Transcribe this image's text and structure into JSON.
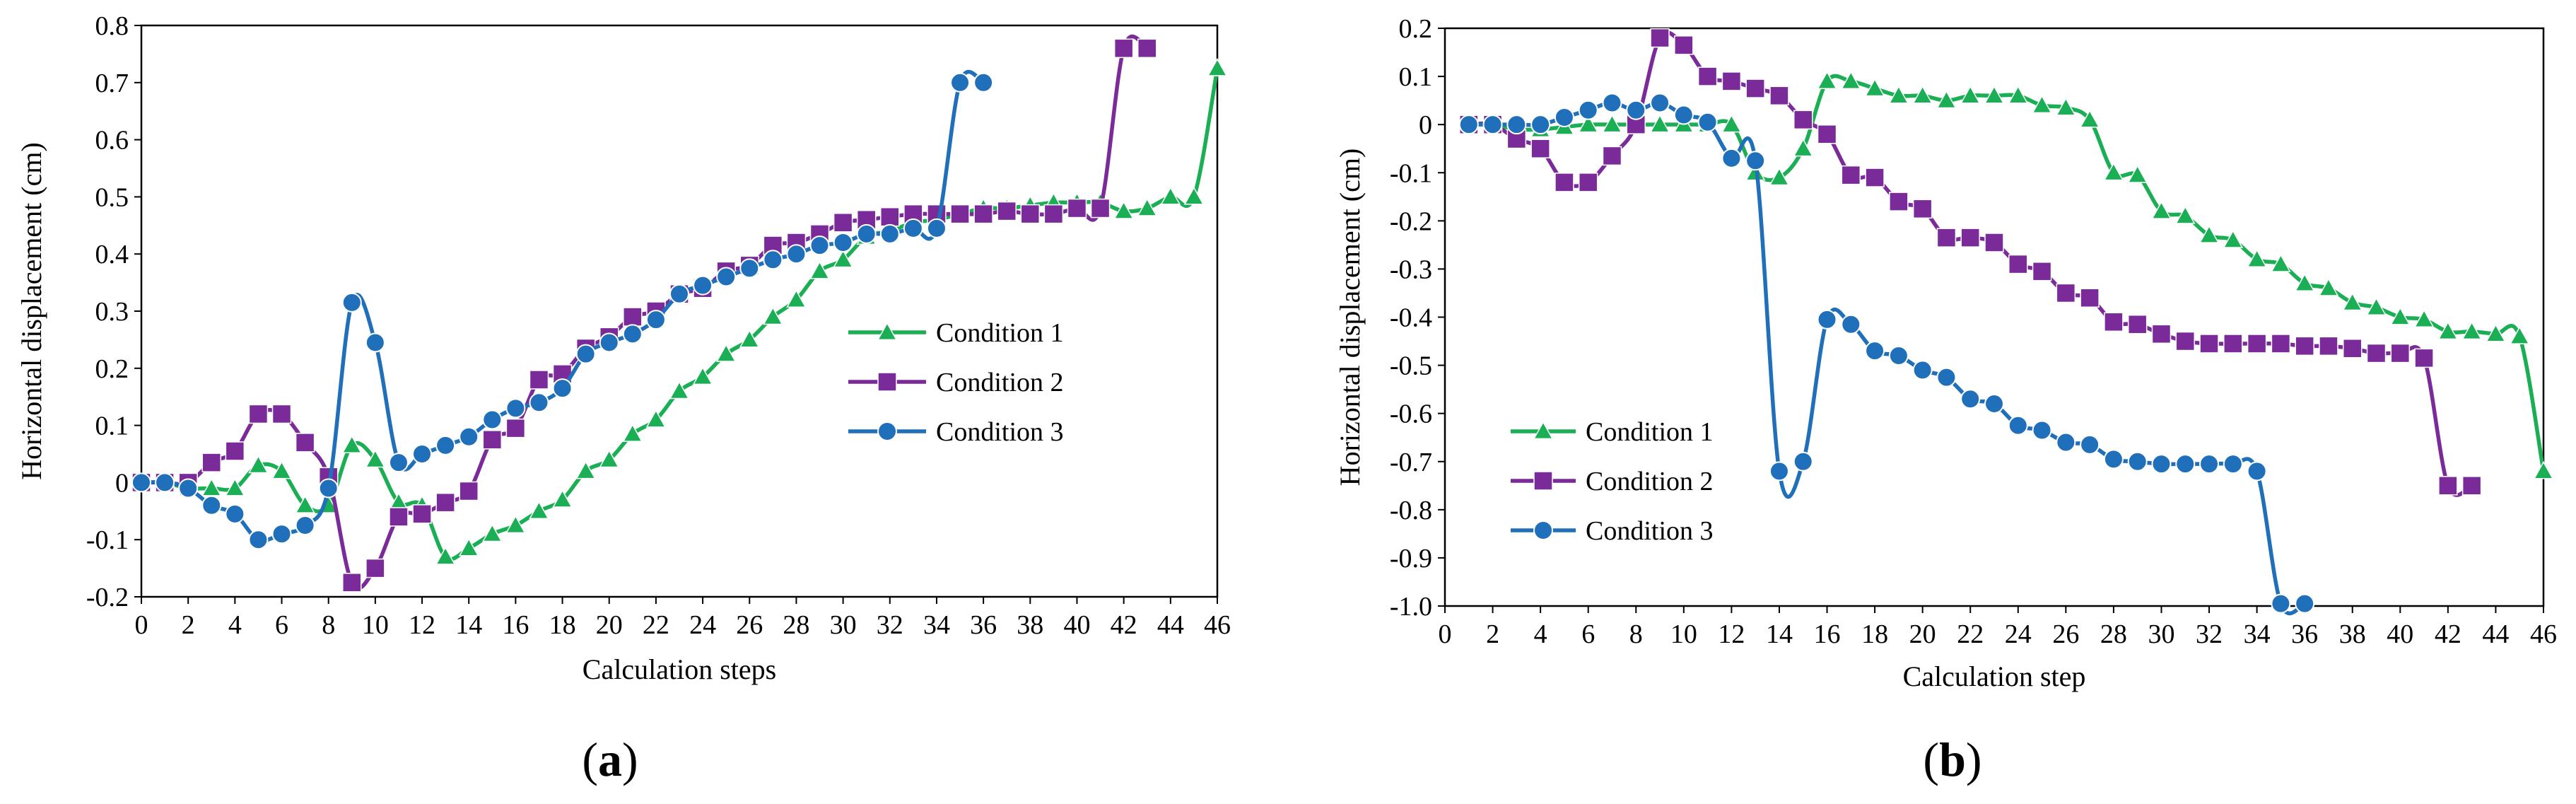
{
  "chart_data": [
    {
      "type": "line",
      "panel_label_open": "(",
      "panel_label_letter": "a",
      "panel_label_close": ")",
      "xlabel": "Calculation steps",
      "ylabel": "Horizontal displacement (cm)",
      "xlim": [
        0,
        46
      ],
      "ylim": [
        -0.2,
        0.8
      ],
      "xticks": [
        0,
        2,
        4,
        6,
        8,
        10,
        12,
        14,
        16,
        18,
        20,
        22,
        24,
        26,
        28,
        30,
        32,
        34,
        36,
        38,
        40,
        42,
        44,
        46
      ],
      "xtick_labels": [
        "0",
        "2",
        "4",
        "6",
        "8",
        "10",
        "12",
        "14",
        "16",
        "18",
        "20",
        "22",
        "24",
        "26",
        "28",
        "30",
        "32",
        "34",
        "36",
        "38",
        "40",
        "42",
        "44",
        "46"
      ],
      "yticks": [
        -0.2,
        -0.1,
        0,
        0.1,
        0.2,
        0.3,
        0.4,
        0.5,
        0.6,
        0.7,
        0.8
      ],
      "ytick_labels": [
        "-0.2",
        "-0.1",
        "0",
        "0.1",
        "0.2",
        "0.3",
        "0.4",
        "0.5",
        "0.6",
        "0.7",
        "0.8"
      ],
      "grid": false,
      "legend_position": "right-middle",
      "series": [
        {
          "name": "Condition 1",
          "color": "#1aaf54",
          "marker": "triangle",
          "x": [
            0,
            1,
            2,
            3,
            4,
            5,
            6,
            7,
            8,
            9,
            10,
            11,
            12,
            13,
            14,
            15,
            16,
            17,
            18,
            19,
            20,
            21,
            22,
            23,
            24,
            25,
            26,
            27,
            28,
            29,
            30,
            31,
            32,
            33,
            34,
            35,
            36,
            37,
            38,
            39,
            40,
            41,
            42,
            43,
            44,
            45,
            46
          ],
          "y": [
            0,
            0,
            -0.01,
            -0.01,
            -0.01,
            0.03,
            0.02,
            -0.04,
            -0.04,
            0.065,
            0.04,
            -0.035,
            -0.04,
            -0.13,
            -0.115,
            -0.09,
            -0.075,
            -0.05,
            -0.03,
            0.02,
            0.04,
            0.085,
            0.11,
            0.16,
            0.185,
            0.225,
            0.25,
            0.29,
            0.32,
            0.37,
            0.39,
            0.43,
            0.44,
            0.455,
            0.46,
            0.47,
            0.48,
            0.48,
            0.485,
            0.49,
            0.49,
            0.49,
            0.475,
            0.48,
            0.5,
            0.5,
            0.725
          ]
        },
        {
          "name": "Condition 2",
          "color": "#7b2a99",
          "marker": "square",
          "x": [
            0,
            1,
            2,
            3,
            4,
            5,
            6,
            7,
            8,
            9,
            10,
            11,
            12,
            13,
            14,
            15,
            16,
            17,
            18,
            19,
            20,
            21,
            22,
            23,
            24,
            25,
            26,
            27,
            28,
            29,
            30,
            31,
            32,
            33,
            34,
            35,
            36,
            37,
            38,
            39,
            40,
            41,
            42,
            43
          ],
          "y": [
            0,
            0,
            0,
            0.035,
            0.055,
            0.12,
            0.12,
            0.07,
            0.01,
            -0.175,
            -0.15,
            -0.06,
            -0.055,
            -0.035,
            -0.015,
            0.075,
            0.095,
            0.18,
            0.19,
            0.235,
            0.255,
            0.29,
            0.3,
            0.33,
            0.34,
            0.37,
            0.38,
            0.415,
            0.42,
            0.435,
            0.455,
            0.46,
            0.465,
            0.47,
            0.47,
            0.47,
            0.47,
            0.475,
            0.47,
            0.47,
            0.48,
            0.48,
            0.76,
            0.76
          ]
        },
        {
          "name": "Condition 3",
          "color": "#1f6fba",
          "marker": "circle",
          "x": [
            0,
            1,
            2,
            3,
            4,
            5,
            6,
            7,
            8,
            9,
            10,
            11,
            12,
            13,
            14,
            15,
            16,
            17,
            18,
            19,
            20,
            21,
            22,
            23,
            24,
            25,
            26,
            27,
            28,
            29,
            30,
            31,
            32,
            33,
            34,
            35,
            36
          ],
          "y": [
            0,
            0,
            -0.01,
            -0.04,
            -0.055,
            -0.1,
            -0.09,
            -0.075,
            -0.01,
            0.315,
            0.245,
            0.035,
            0.05,
            0.065,
            0.08,
            0.11,
            0.13,
            0.14,
            0.165,
            0.225,
            0.245,
            0.26,
            0.285,
            0.33,
            0.345,
            0.36,
            0.375,
            0.39,
            0.4,
            0.415,
            0.42,
            0.435,
            0.435,
            0.445,
            0.445,
            0.7,
            0.7
          ]
        }
      ]
    },
    {
      "type": "line",
      "panel_label_open": "(",
      "panel_label_letter": "b",
      "panel_label_close": ")",
      "xlabel": "Calculation step",
      "ylabel": "Horizontal displacement (cm)",
      "xlim": [
        0,
        46
      ],
      "ylim": [
        -1.0,
        0.2
      ],
      "xticks": [
        0,
        2,
        4,
        6,
        8,
        10,
        12,
        14,
        16,
        18,
        20,
        22,
        24,
        26,
        28,
        30,
        32,
        34,
        36,
        38,
        40,
        42,
        44,
        46
      ],
      "xtick_labels": [
        "0",
        "2",
        "4",
        "6",
        "8",
        "10",
        "12",
        "14",
        "16",
        "18",
        "20",
        "22",
        "24",
        "26",
        "28",
        "30",
        "32",
        "34",
        "36",
        "38",
        "40",
        "42",
        "44",
        "46"
      ],
      "yticks": [
        -1.0,
        -0.9,
        -0.8,
        -0.7,
        -0.6,
        -0.5,
        -0.4,
        -0.3,
        -0.2,
        -0.1,
        0,
        0.1,
        0.2
      ],
      "ytick_labels": [
        "-1.0",
        "-0.9",
        "-0.8",
        "-0.7",
        "-0.6",
        "-0.5",
        "-0.4",
        "-0.3",
        "-0.2",
        "-0.1",
        "0",
        "0.1",
        "0.2"
      ],
      "grid": false,
      "legend_position": "left-middle",
      "series": [
        {
          "name": "Condition 1",
          "color": "#1aaf54",
          "marker": "triangle",
          "x": [
            1,
            2,
            3,
            4,
            5,
            6,
            7,
            8,
            9,
            10,
            11,
            12,
            13,
            14,
            15,
            16,
            17,
            18,
            19,
            20,
            21,
            22,
            23,
            24,
            25,
            26,
            27,
            28,
            29,
            30,
            31,
            32,
            33,
            34,
            35,
            36,
            37,
            38,
            39,
            40,
            41,
            42,
            43,
            44,
            45,
            46
          ],
          "y": [
            0,
            0,
            -0.01,
            -0.01,
            -0.005,
            0,
            0,
            0,
            0,
            0,
            0,
            0,
            -0.1,
            -0.11,
            -0.05,
            0.09,
            0.09,
            0.075,
            0.06,
            0.06,
            0.05,
            0.06,
            0.06,
            0.06,
            0.04,
            0.035,
            0.01,
            -0.1,
            -0.105,
            -0.18,
            -0.19,
            -0.23,
            -0.24,
            -0.28,
            -0.29,
            -0.33,
            -0.34,
            -0.37,
            -0.38,
            -0.4,
            -0.405,
            -0.43,
            -0.43,
            -0.435,
            -0.44,
            -0.72
          ]
        },
        {
          "name": "Condition 2",
          "color": "#7b2a99",
          "marker": "square",
          "x": [
            1,
            2,
            3,
            4,
            5,
            6,
            7,
            8,
            9,
            10,
            11,
            12,
            13,
            14,
            15,
            16,
            17,
            18,
            19,
            20,
            21,
            22,
            23,
            24,
            25,
            26,
            27,
            28,
            29,
            30,
            31,
            32,
            33,
            34,
            35,
            36,
            37,
            38,
            39,
            40,
            41,
            42,
            43
          ],
          "y": [
            0,
            0,
            -0.03,
            -0.05,
            -0.12,
            -0.12,
            -0.065,
            0,
            0.18,
            0.165,
            0.1,
            0.09,
            0.075,
            0.06,
            0.01,
            -0.02,
            -0.105,
            -0.11,
            -0.16,
            -0.175,
            -0.235,
            -0.235,
            -0.245,
            -0.29,
            -0.305,
            -0.35,
            -0.36,
            -0.41,
            -0.415,
            -0.435,
            -0.45,
            -0.455,
            -0.455,
            -0.455,
            -0.455,
            -0.46,
            -0.46,
            -0.465,
            -0.475,
            -0.475,
            -0.485,
            -0.75,
            -0.75
          ]
        },
        {
          "name": "Condition 3",
          "color": "#1f6fba",
          "marker": "circle",
          "x": [
            1,
            2,
            3,
            4,
            5,
            6,
            7,
            8,
            9,
            10,
            11,
            12,
            13,
            14,
            15,
            16,
            17,
            18,
            19,
            20,
            21,
            22,
            23,
            24,
            25,
            26,
            27,
            28,
            29,
            30,
            31,
            32,
            33,
            34,
            35,
            36
          ],
          "y": [
            0,
            0,
            0,
            0,
            0.015,
            0.03,
            0.045,
            0.03,
            0.045,
            0.02,
            0.005,
            -0.07,
            -0.075,
            -0.72,
            -0.7,
            -0.405,
            -0.415,
            -0.47,
            -0.48,
            -0.51,
            -0.525,
            -0.57,
            -0.58,
            -0.625,
            -0.635,
            -0.66,
            -0.665,
            -0.695,
            -0.7,
            -0.705,
            -0.705,
            -0.705,
            -0.705,
            -0.72,
            -0.995,
            -0.995
          ]
        }
      ]
    }
  ]
}
